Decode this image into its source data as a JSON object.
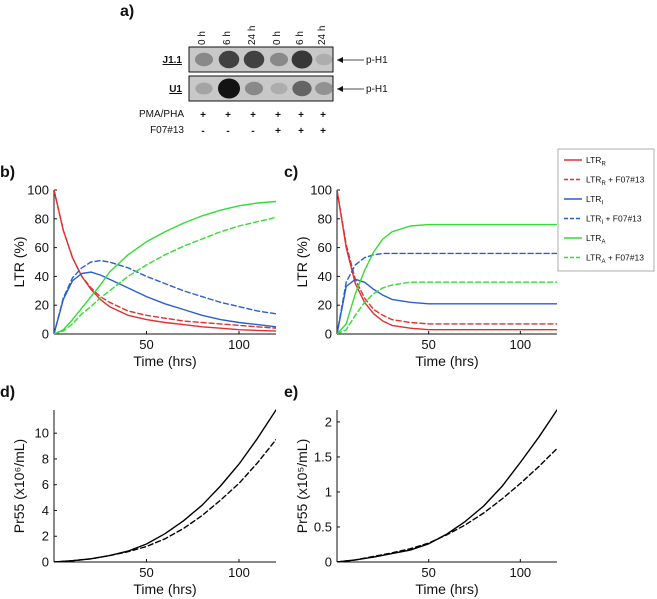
{
  "panel_a": {
    "label": "a)",
    "lanes": [
      "0 h",
      "6 h",
      "24 h",
      "0 h",
      "6 h",
      "24 h"
    ],
    "blots": [
      {
        "name": "J1.1",
        "band": "p-H1",
        "intensities": [
          0.35,
          0.75,
          0.75,
          0.35,
          0.8,
          0.15
        ]
      },
      {
        "name": "U1",
        "band": "p-H1",
        "intensities": [
          0.2,
          1.0,
          0.35,
          0.15,
          0.55,
          0.3
        ]
      }
    ],
    "conditions": [
      {
        "name": "PMA/PHA",
        "signs": [
          "+",
          "+",
          "+",
          "+",
          "+",
          "+"
        ]
      },
      {
        "name": "F07#13",
        "signs": [
          "-",
          "-",
          "-",
          "+",
          "+",
          "+"
        ]
      }
    ]
  },
  "legend": [
    {
      "main": "LTR",
      "sub": "R",
      "suffix": "",
      "color": "#e03030",
      "dashed": false
    },
    {
      "main": "LTR",
      "sub": "R",
      "suffix": " + F07#13",
      "color": "#e03030",
      "dashed": true
    },
    {
      "main": "LTR",
      "sub": "I",
      "suffix": "",
      "color": "#2a5fd0",
      "dashed": false
    },
    {
      "main": "LTR",
      "sub": "I",
      "suffix": " + F07#13",
      "color": "#2a5fd0",
      "dashed": true
    },
    {
      "main": "LTR",
      "sub": "A",
      "suffix": "",
      "color": "#33dd33",
      "dashed": false
    },
    {
      "main": "LTR",
      "sub": "A",
      "suffix": " + F07#13",
      "color": "#33dd33",
      "dashed": true
    }
  ],
  "chart_data": [
    {
      "panel": "b)",
      "type": "line",
      "xlabel": "Time (hrs)",
      "ylabel": "LTR (%)",
      "xlim": [
        0,
        120
      ],
      "ylim": [
        0,
        100
      ],
      "xticks": [
        "50",
        "100"
      ],
      "yticks": [
        "0",
        "20",
        "40",
        "60",
        "80",
        "100"
      ],
      "series": [
        {
          "name": "LTR_R",
          "color": "#e03030",
          "dashed": false,
          "x": [
            0,
            5,
            10,
            15,
            20,
            25,
            30,
            40,
            50,
            60,
            70,
            80,
            90,
            100,
            110,
            120
          ],
          "y": [
            100,
            72,
            53,
            40,
            31,
            24,
            19,
            13,
            10,
            8,
            6.5,
            5,
            4,
            3,
            2.5,
            2
          ]
        },
        {
          "name": "LTR_R + F07#13",
          "color": "#e03030",
          "dashed": true,
          "x": [
            0,
            5,
            10,
            15,
            20,
            25,
            30,
            40,
            50,
            60,
            70,
            80,
            90,
            100,
            110,
            120
          ],
          "y": [
            100,
            72,
            53,
            40,
            32,
            26,
            22,
            16,
            13,
            11,
            9,
            8,
            7,
            6,
            5,
            4
          ]
        },
        {
          "name": "LTR_I",
          "color": "#2a5fd0",
          "dashed": false,
          "x": [
            0,
            5,
            10,
            15,
            20,
            25,
            30,
            40,
            50,
            60,
            70,
            80,
            90,
            100,
            110,
            120
          ],
          "y": [
            0,
            24,
            37,
            42,
            43,
            41,
            38,
            32,
            26,
            21,
            17,
            13,
            10,
            8,
            6.5,
            5
          ]
        },
        {
          "name": "LTR_I + F07#13",
          "color": "#2a5fd0",
          "dashed": true,
          "x": [
            0,
            5,
            10,
            15,
            20,
            25,
            30,
            40,
            50,
            60,
            70,
            80,
            90,
            100,
            110,
            120
          ],
          "y": [
            0,
            25,
            39,
            46,
            50,
            51,
            50,
            46,
            40,
            35,
            30,
            26,
            22,
            19,
            16,
            14
          ]
        },
        {
          "name": "LTR_A",
          "color": "#33dd33",
          "dashed": false,
          "x": [
            0,
            5,
            10,
            15,
            20,
            25,
            30,
            40,
            50,
            60,
            70,
            80,
            90,
            100,
            110,
            120
          ],
          "y": [
            0,
            3,
            10,
            18,
            26,
            34,
            43,
            55,
            64,
            71,
            77,
            82,
            86,
            89,
            91,
            92
          ]
        },
        {
          "name": "LTR_A + F07#13",
          "color": "#33dd33",
          "dashed": true,
          "x": [
            0,
            5,
            10,
            15,
            20,
            25,
            30,
            40,
            50,
            60,
            70,
            80,
            90,
            100,
            110,
            120
          ],
          "y": [
            0,
            2,
            7,
            14,
            19,
            25,
            30,
            40,
            48,
            55,
            61,
            66,
            71,
            75,
            78,
            81
          ]
        }
      ]
    },
    {
      "panel": "c)",
      "type": "line",
      "xlabel": "Time (hrs)",
      "ylabel": "LTR (%)",
      "xlim": [
        0,
        120
      ],
      "ylim": [
        0,
        100
      ],
      "xticks": [
        "50",
        "100"
      ],
      "yticks": [
        "0",
        "20",
        "40",
        "60",
        "80",
        "100"
      ],
      "series": [
        {
          "name": "LTR_R",
          "color": "#e03030",
          "dashed": false,
          "x": [
            0,
            5,
            10,
            15,
            20,
            25,
            30,
            40,
            50,
            60,
            80,
            100,
            120
          ],
          "y": [
            100,
            60,
            35,
            22,
            14,
            9,
            6,
            4,
            3,
            3,
            3,
            3,
            3
          ]
        },
        {
          "name": "LTR_R + F07#13",
          "color": "#e03030",
          "dashed": true,
          "x": [
            0,
            5,
            10,
            15,
            20,
            25,
            30,
            40,
            50,
            60,
            80,
            100,
            120
          ],
          "y": [
            100,
            62,
            38,
            25,
            17,
            13,
            10,
            8,
            7,
            7,
            7,
            7,
            7
          ]
        },
        {
          "name": "LTR_I",
          "color": "#2a5fd0",
          "dashed": false,
          "x": [
            0,
            5,
            10,
            15,
            20,
            25,
            30,
            40,
            50,
            60,
            80,
            100,
            120
          ],
          "y": [
            0,
            33,
            38,
            36,
            31,
            27,
            24,
            22,
            21,
            21,
            21,
            21,
            21
          ]
        },
        {
          "name": "LTR_I + F07#13",
          "color": "#2a5fd0",
          "dashed": true,
          "x": [
            0,
            5,
            10,
            15,
            20,
            25,
            30,
            40,
            50,
            60,
            80,
            100,
            120
          ],
          "y": [
            0,
            36,
            48,
            53,
            55,
            56,
            56,
            56,
            56,
            56,
            56,
            56,
            56
          ]
        },
        {
          "name": "LTR_A",
          "color": "#33dd33",
          "dashed": false,
          "x": [
            0,
            5,
            10,
            15,
            20,
            25,
            30,
            40,
            50,
            60,
            80,
            100,
            120
          ],
          "y": [
            0,
            7,
            28,
            44,
            57,
            66,
            71,
            75,
            76,
            76,
            76,
            76,
            76
          ]
        },
        {
          "name": "LTR_A + F07#13",
          "color": "#33dd33",
          "dashed": true,
          "x": [
            0,
            5,
            10,
            15,
            20,
            25,
            30,
            40,
            50,
            60,
            80,
            100,
            120
          ],
          "y": [
            0,
            3,
            13,
            22,
            28,
            32,
            34,
            36,
            36,
            36,
            36,
            36,
            36
          ]
        }
      ]
    },
    {
      "panel": "d)",
      "type": "line",
      "xlabel": "Time (hrs)",
      "ylabel": "Pr55 (x10⁶/mL)",
      "xlim": [
        0,
        120
      ],
      "ylim": [
        0,
        11.8
      ],
      "xticks": [
        "50",
        "100"
      ],
      "yticks": [
        "0",
        "2",
        "4",
        "6",
        "8",
        "10"
      ],
      "series": [
        {
          "name": "Pr55",
          "color": "#000000",
          "dashed": false,
          "x": [
            0,
            10,
            20,
            30,
            40,
            50,
            60,
            70,
            80,
            90,
            100,
            110,
            120
          ],
          "y": [
            0,
            0.1,
            0.25,
            0.5,
            0.85,
            1.4,
            2.2,
            3.2,
            4.4,
            5.9,
            7.6,
            9.6,
            11.8
          ]
        },
        {
          "name": "Pr55 + F07#13",
          "color": "#000000",
          "dashed": true,
          "x": [
            0,
            10,
            20,
            30,
            40,
            50,
            60,
            70,
            80,
            90,
            100,
            110,
            120
          ],
          "y": [
            0,
            0.1,
            0.25,
            0.5,
            0.8,
            1.2,
            1.8,
            2.6,
            3.6,
            4.8,
            6.1,
            7.7,
            9.5
          ]
        }
      ]
    },
    {
      "panel": "e)",
      "type": "line",
      "xlabel": "Time (hrs)",
      "ylabel": "Pr55 (x10⁵/mL)",
      "xlim": [
        0,
        120
      ],
      "ylim": [
        0,
        2.17
      ],
      "xticks": [
        "50",
        "100"
      ],
      "yticks": [
        "0",
        "0.5",
        "1",
        "1.5",
        "2"
      ],
      "series": [
        {
          "name": "Pr55",
          "color": "#000000",
          "dashed": false,
          "x": [
            0,
            10,
            20,
            30,
            40,
            50,
            60,
            70,
            80,
            90,
            100,
            110,
            120
          ],
          "y": [
            0,
            0.03,
            0.07,
            0.12,
            0.17,
            0.26,
            0.4,
            0.58,
            0.8,
            1.08,
            1.42,
            1.78,
            2.17
          ]
        },
        {
          "name": "Pr55 + F07#13",
          "color": "#000000",
          "dashed": true,
          "x": [
            0,
            10,
            20,
            30,
            40,
            50,
            60,
            70,
            80,
            90,
            100,
            110,
            120
          ],
          "y": [
            0,
            0.03,
            0.08,
            0.13,
            0.19,
            0.27,
            0.39,
            0.53,
            0.7,
            0.9,
            1.12,
            1.36,
            1.62
          ]
        }
      ]
    }
  ]
}
